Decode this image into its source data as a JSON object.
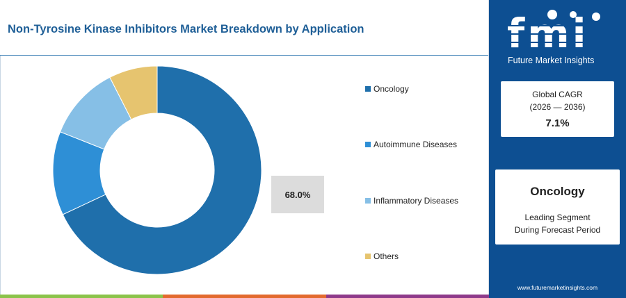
{
  "title": "Non-Tyrosine Kinase Inhibitors Market Breakdown by Application",
  "highlight_value": "68.0%",
  "chart_data": {
    "type": "pie",
    "variant": "donut",
    "categories": [
      "Oncology",
      "Autoimmune Diseases",
      "Inflammatory Diseases",
      "Others"
    ],
    "values": [
      68.0,
      13.0,
      11.5,
      7.5
    ],
    "colors": [
      "#1f6fab",
      "#2e8fd6",
      "#86bfe6",
      "#e6c46f"
    ],
    "legend_position": "right"
  },
  "bottom_bar_colors": [
    "#8bc34a",
    "#e36a2e",
    "#8e3a8a"
  ],
  "sidebar": {
    "logo_text": "fmi",
    "logo_subtitle": "Future Market Insights",
    "cagr": {
      "label": "Global CAGR",
      "period": "(2026 — 2036)",
      "value": "7.1%"
    },
    "segment": {
      "name": "Oncology",
      "line1": "Leading Segment",
      "line2": "During Forecast Period"
    },
    "url": "www.futuremarketinsights.com"
  }
}
